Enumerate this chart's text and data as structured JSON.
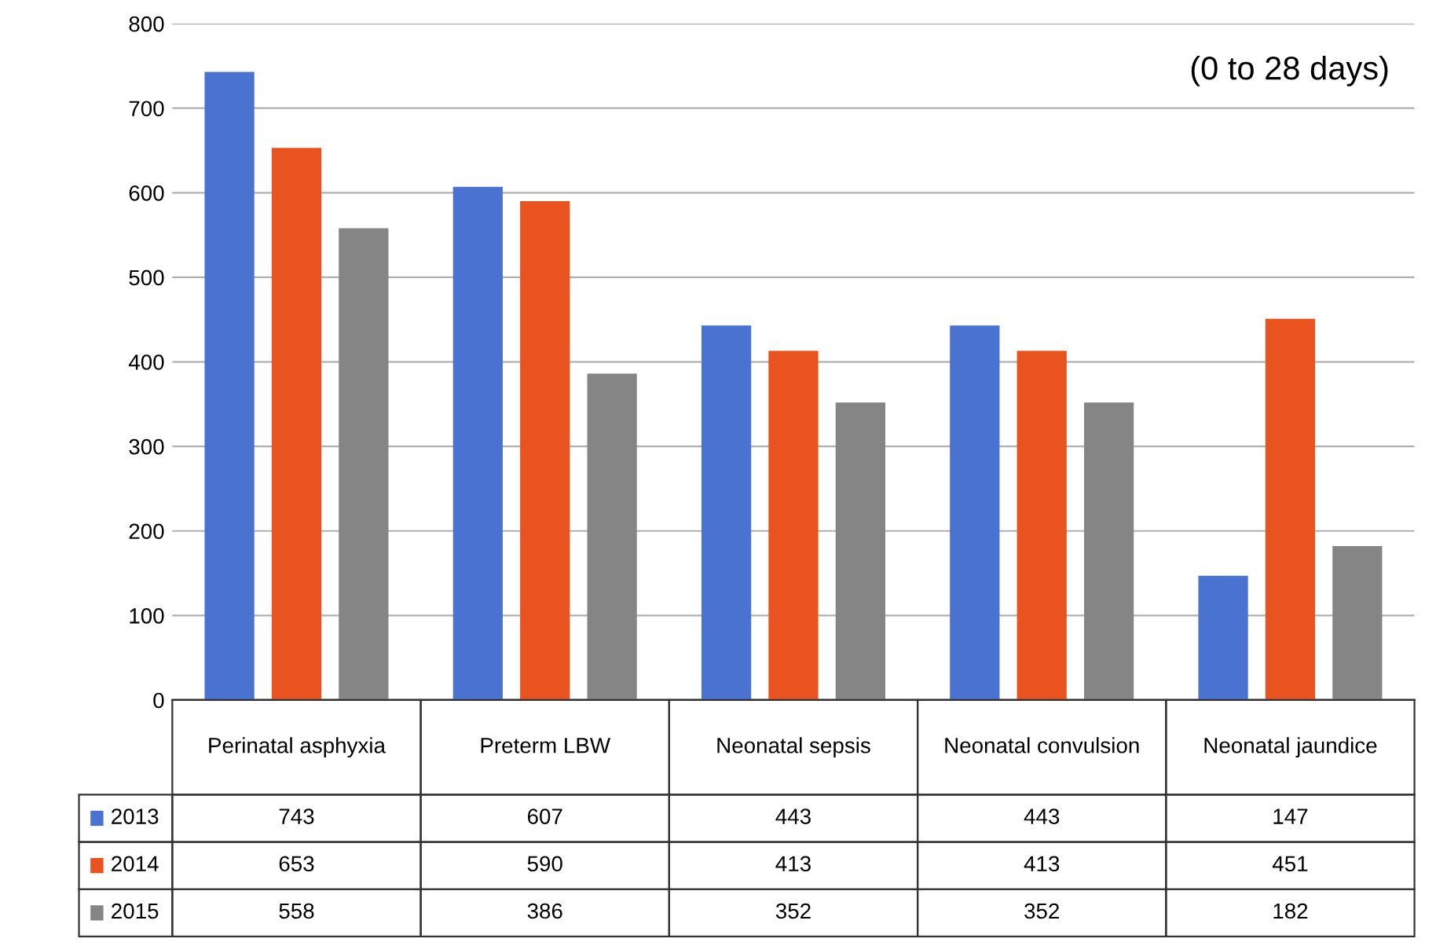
{
  "chart_data": {
    "type": "bar",
    "categories": [
      "Perinatal asphyxia",
      "Preterm LBW",
      "Neonatal sepsis",
      "Neonatal convulsion",
      "Neonatal jaundice"
    ],
    "series": [
      {
        "name": "2013",
        "color": "#4a72d0",
        "values": [
          743,
          607,
          443,
          443,
          147
        ],
        "value_labels": [
          "743",
          "607",
          "443",
          "443",
          "147"
        ]
      },
      {
        "name": "2014",
        "color": "#e8531f",
        "values": [
          653,
          590,
          413,
          413,
          451
        ],
        "value_labels": [
          "653",
          "590",
          "413",
          "413",
          "451"
        ]
      },
      {
        "name": "2015",
        "color": "#858585",
        "values": [
          558,
          386,
          352,
          352,
          182
        ],
        "value_labels": [
          "558",
          "386",
          "352",
          "352",
          "182"
        ]
      }
    ],
    "ylim": [
      0,
      800
    ],
    "yticks": [
      0,
      100,
      200,
      300,
      400,
      500,
      600,
      700,
      800
    ],
    "grid": "y",
    "legend": "bottom left",
    "annotations": [
      "(0 to 28 days)"
    ]
  }
}
